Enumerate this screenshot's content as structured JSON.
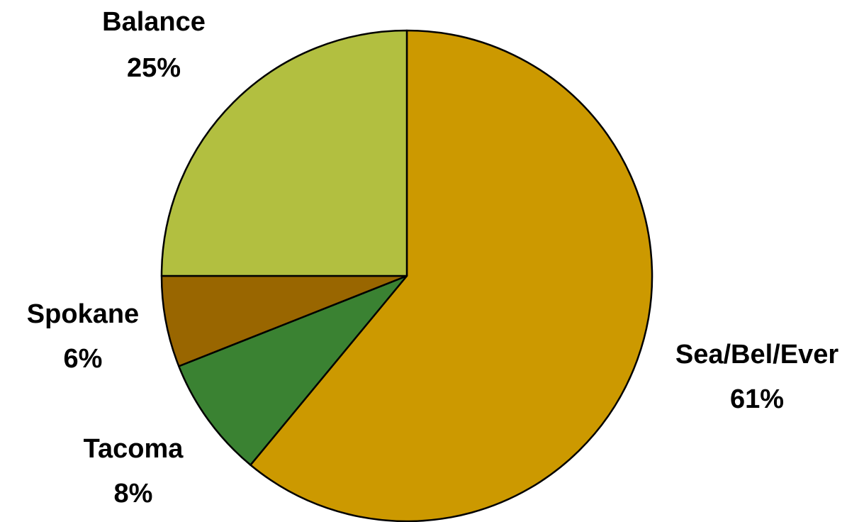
{
  "chart_data": {
    "type": "pie",
    "title": "",
    "start_angle_deg": 0,
    "direction": "clockwise",
    "slices": [
      {
        "label": "Sea/Bel/Ever",
        "percent_label": "61%",
        "value": 61,
        "color": "#CC9900"
      },
      {
        "label": "Tacoma",
        "percent_label": "8%",
        "value": 8,
        "color": "#3A8232"
      },
      {
        "label": "Spokane",
        "percent_label": "6%",
        "value": 6,
        "color": "#996600"
      },
      {
        "label": "Balance",
        "percent_label": "25%",
        "value": 25,
        "color": "#B2BF40"
      }
    ],
    "legend": "none"
  }
}
